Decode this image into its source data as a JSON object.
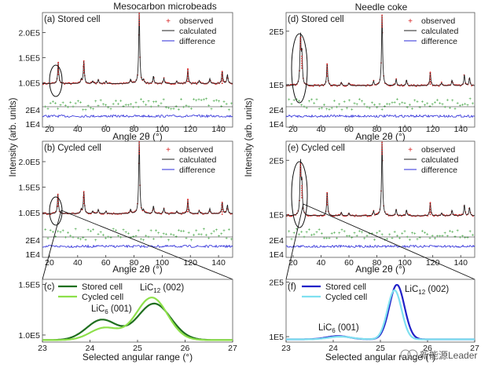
{
  "page": {
    "col_titles": [
      "Mesocarbon microbeads",
      "Needle coke"
    ],
    "y_axis_label": "Intensity (arb. units)",
    "watermark": "新能源Leader"
  },
  "chart_data": [
    {
      "id": "a",
      "type": "line",
      "panel_label": "(a) Stored cell",
      "xlabel": "Angle 2θ (°)",
      "xlim": [
        15,
        150
      ],
      "x_ticks": [
        "20",
        "40",
        "60",
        "80",
        "100",
        "120",
        "140"
      ],
      "main_ylim": [
        0.8,
        2.4
      ],
      "y_ticks": [
        "1.0E5",
        "1.5E5",
        "2.0E5"
      ],
      "y_tick_values": [
        1.0,
        1.5,
        2.0
      ],
      "diff_ticks": [
        "2E4",
        "1E4"
      ],
      "legend": [
        "observed",
        "calculated",
        "difference"
      ],
      "baseline": 0.98,
      "peaks": [
        [
          26.2,
          0.42
        ],
        [
          42.6,
          0.08
        ],
        [
          44.4,
          0.45
        ],
        [
          50.7,
          0.05
        ],
        [
          54.6,
          0.08
        ],
        [
          60.1,
          0.05
        ],
        [
          77.6,
          0.08
        ],
        [
          83.7,
          1.42
        ],
        [
          86.7,
          0.06
        ],
        [
          93.8,
          0.14
        ],
        [
          101.2,
          0.1
        ],
        [
          110.4,
          0.05
        ],
        [
          118.2,
          0.28
        ],
        [
          126.3,
          0.06
        ],
        [
          133.8,
          0.1
        ],
        [
          142.6,
          0.24
        ],
        [
          146.3,
          0.18
        ]
      ]
    },
    {
      "id": "b",
      "type": "line",
      "panel_label": "(b) Cycled cell",
      "xlabel": "Angle 2θ (°)",
      "xlim": [
        15,
        150
      ],
      "x_ticks": [
        "20",
        "40",
        "60",
        "80",
        "100",
        "120",
        "140"
      ],
      "main_ylim": [
        0.8,
        2.4
      ],
      "y_ticks": [
        "1.0E5",
        "1.5E5",
        "2.0E5"
      ],
      "y_tick_values": [
        1.0,
        1.5,
        2.0
      ],
      "diff_ticks": [
        "2E4",
        "1E4"
      ],
      "legend": [
        "observed",
        "calculated",
        "difference"
      ],
      "baseline": 0.98,
      "peaks": [
        [
          26.0,
          0.38
        ],
        [
          42.6,
          0.08
        ],
        [
          44.4,
          0.43
        ],
        [
          50.7,
          0.05
        ],
        [
          54.6,
          0.08
        ],
        [
          60.1,
          0.05
        ],
        [
          77.6,
          0.08
        ],
        [
          83.7,
          1.45
        ],
        [
          86.7,
          0.06
        ],
        [
          93.8,
          0.14
        ],
        [
          101.2,
          0.1
        ],
        [
          110.4,
          0.05
        ],
        [
          118.2,
          0.27
        ],
        [
          126.3,
          0.06
        ],
        [
          133.8,
          0.1
        ],
        [
          142.6,
          0.22
        ],
        [
          146.3,
          0.17
        ]
      ]
    },
    {
      "id": "d",
      "type": "line",
      "panel_label": "(d) Stored cell",
      "xlabel": "Angle 2θ (°)",
      "xlim": [
        15,
        150
      ],
      "x_ticks": [
        "20",
        "40",
        "60",
        "80",
        "100",
        "120",
        "140"
      ],
      "main_ylim": [
        0.85,
        2.35
      ],
      "y_ticks": [
        "1E5",
        "2E5"
      ],
      "y_tick_values": [
        1.0,
        2.0
      ],
      "diff_ticks": [
        "2E4",
        "1E4"
      ],
      "legend": [
        "observed",
        "calculated",
        "difference"
      ],
      "baseline": 0.98,
      "peaks": [
        [
          25.3,
          0.9
        ],
        [
          26.3,
          0.55
        ],
        [
          44.4,
          0.4
        ],
        [
          54.6,
          0.06
        ],
        [
          60.1,
          0.05
        ],
        [
          77.6,
          0.08
        ],
        [
          83.7,
          1.32
        ],
        [
          93.8,
          0.12
        ],
        [
          101.2,
          0.1
        ],
        [
          118.2,
          0.25
        ],
        [
          126.3,
          0.05
        ],
        [
          133.8,
          0.1
        ],
        [
          142.6,
          0.2
        ],
        [
          146.3,
          0.15
        ]
      ]
    },
    {
      "id": "e",
      "type": "line",
      "panel_label": "(e) Cycled cell",
      "xlabel": "Angle 2θ (°)",
      "xlim": [
        15,
        150
      ],
      "x_ticks": [
        "20",
        "40",
        "60",
        "80",
        "100",
        "120",
        "140"
      ],
      "main_ylim": [
        0.85,
        2.35
      ],
      "y_ticks": [
        "1E5",
        "2E5"
      ],
      "y_tick_values": [
        1.0,
        2.0
      ],
      "diff_ticks": [
        "2E4",
        "1E4"
      ],
      "legend": [
        "observed",
        "calculated",
        "difference"
      ],
      "baseline": 0.98,
      "peaks": [
        [
          25.3,
          0.95
        ],
        [
          26.3,
          0.55
        ],
        [
          44.4,
          0.42
        ],
        [
          54.6,
          0.06
        ],
        [
          60.1,
          0.05
        ],
        [
          77.6,
          0.08
        ],
        [
          83.7,
          1.35
        ],
        [
          93.8,
          0.12
        ],
        [
          101.2,
          0.1
        ],
        [
          118.2,
          0.24
        ],
        [
          126.3,
          0.05
        ],
        [
          133.8,
          0.1
        ],
        [
          142.6,
          0.2
        ],
        [
          146.3,
          0.15
        ]
      ]
    },
    {
      "id": "c",
      "type": "line",
      "panel_label": "(c)",
      "xlabel": "Selected angular range (°)",
      "xlim": [
        23,
        27
      ],
      "x_ticks": [
        "23",
        "24",
        "25",
        "26",
        "27"
      ],
      "ylim": [
        0.93,
        1.55
      ],
      "y_ticks": [
        "1.0E5",
        "1.5E5"
      ],
      "y_tick_values": [
        1.0,
        1.5
      ],
      "legend": [
        "Stored cell",
        "Cycled cell"
      ],
      "annotations": [
        "LiC12 (002)",
        "LiC6 (001)"
      ],
      "series": [
        {
          "name": "Stored cell",
          "color": "#1f6f1f",
          "baseline": 0.95,
          "peaks": [
            [
              24.25,
              0.2,
              0.32
            ],
            [
              25.35,
              0.36,
              0.35
            ]
          ]
        },
        {
          "name": "Cycled cell",
          "color": "#8de04a",
          "baseline": 0.95,
          "peaks": [
            [
              24.3,
              0.12,
              0.3
            ],
            [
              25.3,
              0.42,
              0.33
            ]
          ]
        }
      ]
    },
    {
      "id": "f",
      "type": "line",
      "panel_label": "(f)",
      "xlabel": "Selected angular range (°)",
      "xlim": [
        23,
        27
      ],
      "x_ticks": [
        "23",
        "24",
        "25",
        "26",
        "27"
      ],
      "ylim": [
        0.9,
        2.05
      ],
      "y_ticks": [
        "1E5",
        "2E5"
      ],
      "y_tick_values": [
        1.0,
        2.0
      ],
      "legend": [
        "Stored cell",
        "Cycled cell"
      ],
      "annotations": [
        "LiC12 (002)",
        "LiC6 (001)"
      ],
      "series": [
        {
          "name": "Stored cell",
          "color": "#2121c8",
          "baseline": 0.95,
          "peaks": [
            [
              24.1,
              0.06,
              0.25
            ],
            [
              25.35,
              1.0,
              0.16
            ]
          ]
        },
        {
          "name": "Cycled cell",
          "color": "#7fe0f0",
          "baseline": 0.95,
          "peaks": [
            [
              24.15,
              0.05,
              0.25
            ],
            [
              25.3,
              0.9,
              0.15
            ]
          ]
        }
      ]
    }
  ]
}
